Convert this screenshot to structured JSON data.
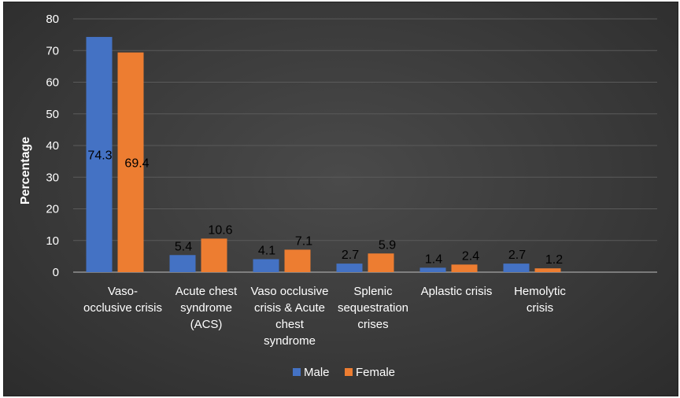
{
  "chart_data": {
    "type": "bar",
    "title": "",
    "xlabel": "",
    "ylabel": "Percentage",
    "ylim": [
      0,
      80
    ],
    "yticks": [
      0,
      10,
      20,
      30,
      40,
      50,
      60,
      70,
      80
    ],
    "categories": [
      [
        "Vaso-",
        "occlusive crisis"
      ],
      [
        "Acute chest",
        "syndrome",
        "(ACS)"
      ],
      [
        "Vaso occlusive",
        "crisis & Acute",
        "chest",
        "syndrome"
      ],
      [
        "Splenic",
        "sequestration",
        "crises"
      ],
      [
        "Aplastic crisis"
      ],
      [
        "Hemolytic",
        "crisis"
      ],
      [
        ""
      ]
    ],
    "series": [
      {
        "name": "Male",
        "color": "#4472C4",
        "values": [
          74.3,
          5.4,
          4.1,
          2.7,
          1.4,
          2.7,
          null
        ],
        "labels": [
          "74.3",
          "5.4",
          "4.1",
          "2.7",
          "1.4",
          "2.7",
          ""
        ]
      },
      {
        "name": "Female",
        "color": "#ED7D31",
        "values": [
          69.4,
          10.6,
          7.1,
          5.9,
          2.4,
          1.2,
          null
        ],
        "labels": [
          "69.4",
          "10.6",
          "7.1",
          "5.9",
          "2.4",
          "1.2",
          ""
        ]
      }
    ],
    "grid": true,
    "legend": "bottom",
    "background": "#3a3a3a"
  }
}
